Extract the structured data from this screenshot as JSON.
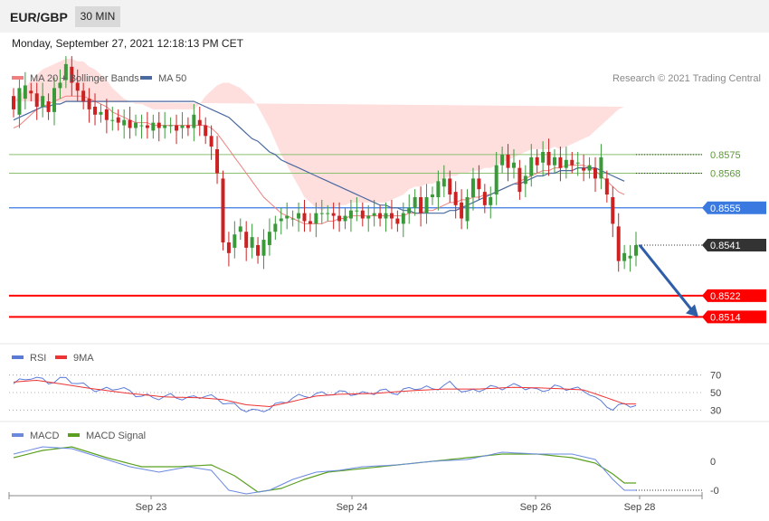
{
  "header": {
    "symbol": "EUR/GBP",
    "timeframe": "30 MIN",
    "datetime": "Monday, September 27, 2021 12:18:13 PM CET"
  },
  "colors": {
    "bull": "#3a9a3a",
    "bear": "#cc2222",
    "ma20": "#f08080",
    "bands": "#ffd8d8",
    "ma50": "#4a6aa0",
    "resistance": "#8cc070",
    "pivot": "#3a7ae0",
    "support": "#ff0000",
    "current": "#333333",
    "arrow": "#2e5ea8",
    "rsi": "#5a7ad8",
    "rsi_ma": "#ee3333",
    "macd": "#6a8ae0",
    "macd_signal": "#5aa020"
  },
  "chart_data": {
    "type": "candlestick",
    "legend": [
      {
        "name": "MA 20 + Bollinger Bands",
        "color": "#f08080"
      },
      {
        "name": "MA 50",
        "color": "#4a6aa0"
      }
    ],
    "credit": "Research © 2021 Trading Central",
    "x_ticks": [
      "Sep 23",
      "Sep 24",
      "Sep 26",
      "Sep 28"
    ],
    "ylim": [
      0.8507,
      0.8611
    ],
    "price_key": [
      [
        0.8597,
        0.8592
      ],
      [
        0.859,
        0.86
      ],
      [
        0.8596,
        0.8601
      ],
      [
        0.8599,
        0.8598
      ],
      [
        0.8598,
        0.8593
      ],
      [
        0.8593,
        0.8597
      ],
      [
        0.8595,
        0.8591
      ],
      [
        0.8591,
        0.86
      ],
      [
        0.86,
        0.8602
      ],
      [
        0.8603,
        0.8609
      ],
      [
        0.8608,
        0.8602
      ],
      [
        0.8602,
        0.8599
      ],
      [
        0.8599,
        0.8595
      ],
      [
        0.8596,
        0.8592
      ],
      [
        0.8593,
        0.859
      ],
      [
        0.859,
        0.8591
      ],
      [
        0.8592,
        0.8588
      ],
      [
        0.8588,
        0.8588
      ],
      [
        0.8589,
        0.8587
      ],
      [
        0.8586,
        0.8588
      ],
      [
        0.8588,
        0.8585
      ],
      [
        0.8585,
        0.8587
      ],
      [
        0.8586,
        0.8586
      ],
      [
        0.8586,
        0.8585
      ],
      [
        0.8584,
        0.8587
      ],
      [
        0.8587,
        0.8585
      ],
      [
        0.8585,
        0.8586
      ],
      [
        0.8586,
        0.8586
      ],
      [
        0.8586,
        0.8584
      ],
      [
        0.8585,
        0.8586
      ],
      [
        0.8586,
        0.8585
      ],
      [
        0.8585,
        0.859
      ],
      [
        0.8588,
        0.8586
      ],
      [
        0.8586,
        0.8582
      ],
      [
        0.8582,
        0.8578
      ],
      [
        0.8577,
        0.8568
      ],
      [
        0.8566,
        0.8542
      ],
      [
        0.8542,
        0.8538
      ],
      [
        0.854,
        0.8545
      ],
      [
        0.8546,
        0.8548
      ],
      [
        0.8546,
        0.854
      ],
      [
        0.854,
        0.8544
      ],
      [
        0.8541,
        0.8537
      ],
      [
        0.8537,
        0.8543
      ],
      [
        0.8541,
        0.8546
      ],
      [
        0.8546,
        0.8549
      ],
      [
        0.855,
        0.8551
      ],
      [
        0.8551,
        0.8552
      ],
      [
        0.8551,
        0.8551
      ],
      [
        0.8551,
        0.8553
      ],
      [
        0.8553,
        0.855
      ],
      [
        0.855,
        0.8549
      ],
      [
        0.8549,
        0.8553
      ],
      [
        0.8553,
        0.8553
      ],
      [
        0.8553,
        0.8553
      ],
      [
        0.8553,
        0.8552
      ],
      [
        0.8552,
        0.855
      ],
      [
        0.855,
        0.8552
      ],
      [
        0.8551,
        0.8554
      ],
      [
        0.8554,
        0.8554
      ],
      [
        0.8554,
        0.8551
      ],
      [
        0.8551,
        0.8552
      ],
      [
        0.8552,
        0.8553
      ],
      [
        0.8553,
        0.8551
      ],
      [
        0.8551,
        0.8553
      ],
      [
        0.8553,
        0.8551
      ],
      [
        0.8551,
        0.8549
      ],
      [
        0.8549,
        0.8553
      ],
      [
        0.8553,
        0.8555
      ],
      [
        0.8555,
        0.8559
      ],
      [
        0.8559,
        0.8553
      ],
      [
        0.8553,
        0.8559
      ],
      [
        0.8559,
        0.856
      ],
      [
        0.8559,
        0.8565
      ],
      [
        0.8563,
        0.8566
      ],
      [
        0.8566,
        0.856
      ],
      [
        0.8561,
        0.8556
      ],
      [
        0.8557,
        0.8551
      ],
      [
        0.855,
        0.8559
      ],
      [
        0.8559,
        0.8566
      ],
      [
        0.8566,
        0.8562
      ],
      [
        0.8561,
        0.8556
      ],
      [
        0.8556,
        0.8559
      ],
      [
        0.856,
        0.8571
      ],
      [
        0.8571,
        0.8575
      ],
      [
        0.8575,
        0.857
      ],
      [
        0.857,
        0.8572
      ],
      [
        0.857,
        0.8561
      ],
      [
        0.8564,
        0.8567
      ],
      [
        0.8567,
        0.8574
      ],
      [
        0.8574,
        0.8571
      ],
      [
        0.8572,
        0.8576
      ],
      [
        0.8576,
        0.8571
      ],
      [
        0.8571,
        0.8574
      ],
      [
        0.8574,
        0.857
      ],
      [
        0.857,
        0.8573
      ],
      [
        0.8573,
        0.8571
      ],
      [
        0.8572,
        0.8572
      ],
      [
        0.857,
        0.8569
      ],
      [
        0.8569,
        0.8571
      ],
      [
        0.857,
        0.8566
      ],
      [
        0.8566,
        0.8574
      ],
      [
        0.8566,
        0.856
      ],
      [
        0.8559,
        0.8549
      ],
      [
        0.8548,
        0.8535
      ],
      [
        0.8535,
        0.8538
      ],
      [
        0.8536,
        0.8537
      ],
      [
        0.8537,
        0.8541
      ]
    ],
    "ma20": [
      0.8585,
      0.8586,
      0.8588,
      0.859,
      0.8592,
      0.8593,
      0.8594,
      0.8595,
      0.8596,
      0.8597,
      0.8597,
      0.8597,
      0.8597,
      0.8596,
      0.8595,
      0.8594,
      0.8593,
      0.8591,
      0.859,
      0.8589,
      0.8588,
      0.8587,
      0.8587,
      0.8587,
      0.8586,
      0.8586,
      0.8586,
      0.8586,
      0.8586,
      0.8586,
      0.8586,
      0.8586,
      0.8586,
      0.8586,
      0.8585,
      0.8583,
      0.858,
      0.8577,
      0.8574,
      0.8571,
      0.8568,
      0.8565,
      0.8562,
      0.8559,
      0.8557,
      0.8555,
      0.8553,
      0.8552,
      0.8551,
      0.855,
      0.8549,
      0.8549,
      0.8549,
      0.8549,
      0.855,
      0.855,
      0.8551,
      0.8551,
      0.8552,
      0.8552,
      0.8552,
      0.8552,
      0.8552,
      0.8552,
      0.8552,
      0.8552,
      0.8552,
      0.8552,
      0.8553,
      0.8553,
      0.8553,
      0.8554,
      0.8554,
      0.8555,
      0.8556,
      0.8557,
      0.8557,
      0.8558,
      0.8558,
      0.8559,
      0.8559,
      0.856,
      0.856,
      0.8561,
      0.8562,
      0.8563,
      0.8564,
      0.8565,
      0.8566,
      0.8567,
      0.8568,
      0.8569,
      0.8569,
      0.857,
      0.857,
      0.8571,
      0.8571,
      0.8571,
      0.8571,
      0.857,
      0.8569,
      0.8567,
      0.8565,
      0.8563,
      0.8561,
      0.856
    ],
    "ma50": [
      0.8588,
      0.8589,
      0.859,
      0.8591,
      0.8592,
      0.8593,
      0.8593,
      0.8594,
      0.8594,
      0.8595,
      0.8595,
      0.8595,
      0.8595,
      0.8595,
      0.8595,
      0.8595,
      0.8595,
      0.8595,
      0.8595,
      0.8595,
      0.8595,
      0.8595,
      0.8595,
      0.8595,
      0.8595,
      0.8595,
      0.8595,
      0.8595,
      0.8595,
      0.8595,
      0.8595,
      0.8595,
      0.8594,
      0.8593,
      0.8592,
      0.8591,
      0.859,
      0.8589,
      0.8587,
      0.8585,
      0.8583,
      0.8581,
      0.858,
      0.8578,
      0.8576,
      0.8575,
      0.8573,
      0.8572,
      0.8571,
      0.857,
      0.8569,
      0.8568,
      0.8567,
      0.8566,
      0.8565,
      0.8564,
      0.8563,
      0.8562,
      0.8561,
      0.856,
      0.8559,
      0.8558,
      0.8557,
      0.8556,
      0.8556,
      0.8555,
      0.8555,
      0.8554,
      0.8554,
      0.8553,
      0.8553,
      0.8553,
      0.8553,
      0.8553,
      0.8553,
      0.8554,
      0.8554,
      0.8555,
      0.8556,
      0.8557,
      0.8558,
      0.8559,
      0.856,
      0.8561,
      0.8562,
      0.8563,
      0.8564,
      0.8564,
      0.8565,
      0.8566,
      0.8567,
      0.8567,
      0.8568,
      0.8568,
      0.8569,
      0.8569,
      0.8569,
      0.857,
      0.857,
      0.857,
      0.857,
      0.8569,
      0.8568,
      0.8567,
      0.8566,
      0.8565
    ],
    "band_width": [
      0.001,
      0.0011,
      0.0012,
      0.0013,
      0.0013,
      0.0014,
      0.0014,
      0.0014,
      0.0014,
      0.0014,
      0.0014,
      0.0013,
      0.0013,
      0.0012,
      0.0012,
      0.0011,
      0.001,
      0.0009,
      0.0008,
      0.0007,
      0.0007,
      0.0007,
      0.0007,
      0.0006,
      0.0006,
      0.0006,
      0.0006,
      0.0006,
      0.0006,
      0.0006,
      0.0006,
      0.0006,
      0.0008,
      0.0011,
      0.0014,
      0.0018,
      0.0022,
      0.0025,
      0.0027,
      0.0029,
      0.003,
      0.0031,
      0.0031,
      0.003,
      0.0028,
      0.0025,
      0.0022,
      0.0019,
      0.0016,
      0.0013,
      0.001,
      0.0008,
      0.0006,
      0.0005,
      0.0005,
      0.0005,
      0.0005,
      0.0005,
      0.0005,
      0.0005,
      0.0005,
      0.0005,
      0.0005,
      0.0005,
      0.0005,
      0.0006,
      0.0007,
      0.0008,
      0.0009,
      0.001,
      0.001,
      0.001,
      0.001,
      0.001,
      0.001,
      0.001,
      0.001,
      0.001,
      0.001,
      0.001,
      0.001,
      0.001,
      0.001,
      0.001,
      0.001,
      0.001,
      0.001,
      0.001,
      0.001,
      0.001,
      0.0009,
      0.0008,
      0.0008,
      0.0008,
      0.0007,
      0.0007,
      0.0008,
      0.0009,
      0.001,
      0.0012,
      0.0015,
      0.0019,
      0.0023,
      0.0027,
      0.0031,
      0.0033
    ],
    "levels": [
      {
        "label": "0.8575",
        "value": 0.8575,
        "kind": "resistance"
      },
      {
        "label": "0.8568",
        "value": 0.8568,
        "kind": "resistance"
      },
      {
        "label": "0.8555",
        "value": 0.8555,
        "kind": "pivot"
      },
      {
        "label": "0.8541",
        "value": 0.8541,
        "kind": "current"
      },
      {
        "label": "0.8522",
        "value": 0.8522,
        "kind": "support"
      },
      {
        "label": "0.8514",
        "value": 0.8514,
        "kind": "support"
      }
    ],
    "arrow_target": 0.8514,
    "rsi": {
      "legend": [
        {
          "name": "RSI",
          "color": "#5a7ad8"
        },
        {
          "name": "9MA",
          "color": "#ee3333"
        }
      ],
      "ticks": [
        "70",
        "50",
        "30"
      ],
      "tick_values": [
        70,
        50,
        30
      ],
      "ylim": [
        20,
        80
      ],
      "rsi_key": [
        [
          0,
          60
        ],
        [
          3,
          68
        ],
        [
          6,
          62
        ],
        [
          9,
          66
        ],
        [
          12,
          58
        ],
        [
          15,
          52
        ],
        [
          18,
          56
        ],
        [
          21,
          48
        ],
        [
          24,
          44
        ],
        [
          27,
          46
        ],
        [
          30,
          43
        ],
        [
          33,
          47
        ],
        [
          36,
          40
        ],
        [
          39,
          32
        ],
        [
          42,
          28
        ],
        [
          45,
          35
        ],
        [
          48,
          44
        ],
        [
          51,
          47
        ],
        [
          54,
          49
        ],
        [
          57,
          50
        ],
        [
          60,
          48
        ],
        [
          63,
          52
        ],
        [
          66,
          50
        ],
        [
          69,
          56
        ],
        [
          72,
          54
        ],
        [
          75,
          60
        ],
        [
          78,
          50
        ],
        [
          81,
          55
        ],
        [
          84,
          56
        ],
        [
          87,
          58
        ],
        [
          90,
          52
        ],
        [
          93,
          56
        ],
        [
          96,
          55
        ],
        [
          99,
          50
        ],
        [
          101,
          38
        ],
        [
          103,
          32
        ],
        [
          105,
          36
        ]
      ],
      "ma_key": [
        [
          0,
          62
        ],
        [
          4,
          64
        ],
        [
          8,
          60
        ],
        [
          14,
          54
        ],
        [
          20,
          49
        ],
        [
          26,
          45
        ],
        [
          32,
          44
        ],
        [
          36,
          42
        ],
        [
          40,
          36
        ],
        [
          44,
          34
        ],
        [
          48,
          40
        ],
        [
          52,
          46
        ],
        [
          56,
          48
        ],
        [
          62,
          49
        ],
        [
          68,
          52
        ],
        [
          74,
          54
        ],
        [
          80,
          54
        ],
        [
          86,
          56
        ],
        [
          92,
          55
        ],
        [
          98,
          53
        ],
        [
          102,
          44
        ],
        [
          105,
          37
        ]
      ]
    },
    "macd": {
      "legend": [
        {
          "name": "MACD",
          "color": "#6a8ae0"
        },
        {
          "name": "MACD Signal",
          "color": "#5aa020"
        }
      ],
      "ticks": [
        "0",
        "-0"
      ],
      "tick_values": [
        0.0004,
        -0.0012
      ],
      "ylim": [
        -0.0014,
        0.0014
      ],
      "macd_key": [
        [
          0,
          0.0008
        ],
        [
          5,
          0.0012
        ],
        [
          10,
          0.0011
        ],
        [
          15,
          0.0006
        ],
        [
          20,
          0.0001
        ],
        [
          25,
          -0.0002
        ],
        [
          30,
          0.0001
        ],
        [
          34,
          -0.0001
        ],
        [
          37,
          -0.0012
        ],
        [
          40,
          -0.0014
        ],
        [
          44,
          -0.0012
        ],
        [
          48,
          -0.0006
        ],
        [
          52,
          -0.0002
        ],
        [
          56,
          -0.0001
        ],
        [
          60,
          0.0001
        ],
        [
          66,
          0.0002
        ],
        [
          72,
          0.0004
        ],
        [
          78,
          0.0005
        ],
        [
          84,
          0.0009
        ],
        [
          90,
          0.0008
        ],
        [
          96,
          0.0008
        ],
        [
          100,
          0.0005
        ],
        [
          103,
          -0.0006
        ],
        [
          105,
          -0.0012
        ]
      ],
      "signal_key": [
        [
          0,
          0.0006
        ],
        [
          5,
          0.001
        ],
        [
          10,
          0.0012
        ],
        [
          16,
          0.0006
        ],
        [
          22,
          0.0001
        ],
        [
          28,
          0.0001
        ],
        [
          34,
          0.0002
        ],
        [
          38,
          -0.0004
        ],
        [
          42,
          -0.0013
        ],
        [
          46,
          -0.0011
        ],
        [
          50,
          -0.0006
        ],
        [
          54,
          -0.0002
        ],
        [
          60,
          0.0
        ],
        [
          66,
          0.0002
        ],
        [
          72,
          0.0004
        ],
        [
          78,
          0.0006
        ],
        [
          84,
          0.0008
        ],
        [
          90,
          0.0008
        ],
        [
          96,
          0.0006
        ],
        [
          100,
          0.0003
        ],
        [
          103,
          -0.0003
        ],
        [
          105,
          -0.0008
        ]
      ]
    }
  }
}
